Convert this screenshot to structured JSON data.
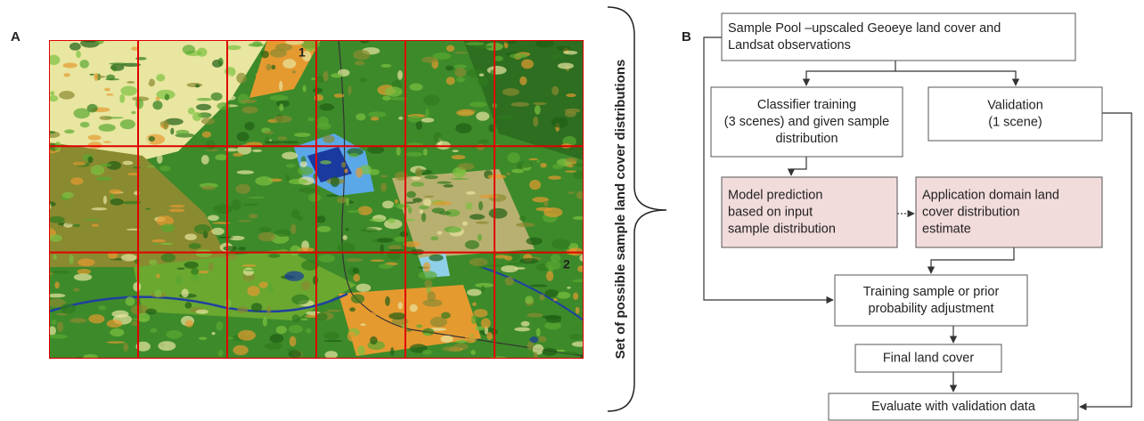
{
  "panel_a": {
    "label": "A",
    "cell_labels": [
      "1",
      "2"
    ]
  },
  "brace_label": "Set of possible sample land cover distributions",
  "panel_b": {
    "label": "B",
    "nodes": [
      {
        "lines": [
          "Sample Pool –upscaled Geoeye land cover and",
          "Landsat observations"
        ]
      },
      {
        "lines": [
          "Classifier training",
          "(3 scenes) and given sample",
          "distribution"
        ]
      },
      {
        "lines": [
          "Validation",
          "(1 scene)"
        ]
      },
      {
        "lines": [
          "Model prediction",
          "based on input",
          "sample distribution"
        ]
      },
      {
        "lines": [
          "Application domain land",
          "cover distribution",
          "estimate"
        ]
      },
      {
        "lines": [
          "Training sample  or prior",
          "probability adjustment"
        ]
      },
      {
        "lines": [
          "Final land cover"
        ]
      },
      {
        "lines": [
          "Evaluate with validation data"
        ]
      }
    ]
  }
}
